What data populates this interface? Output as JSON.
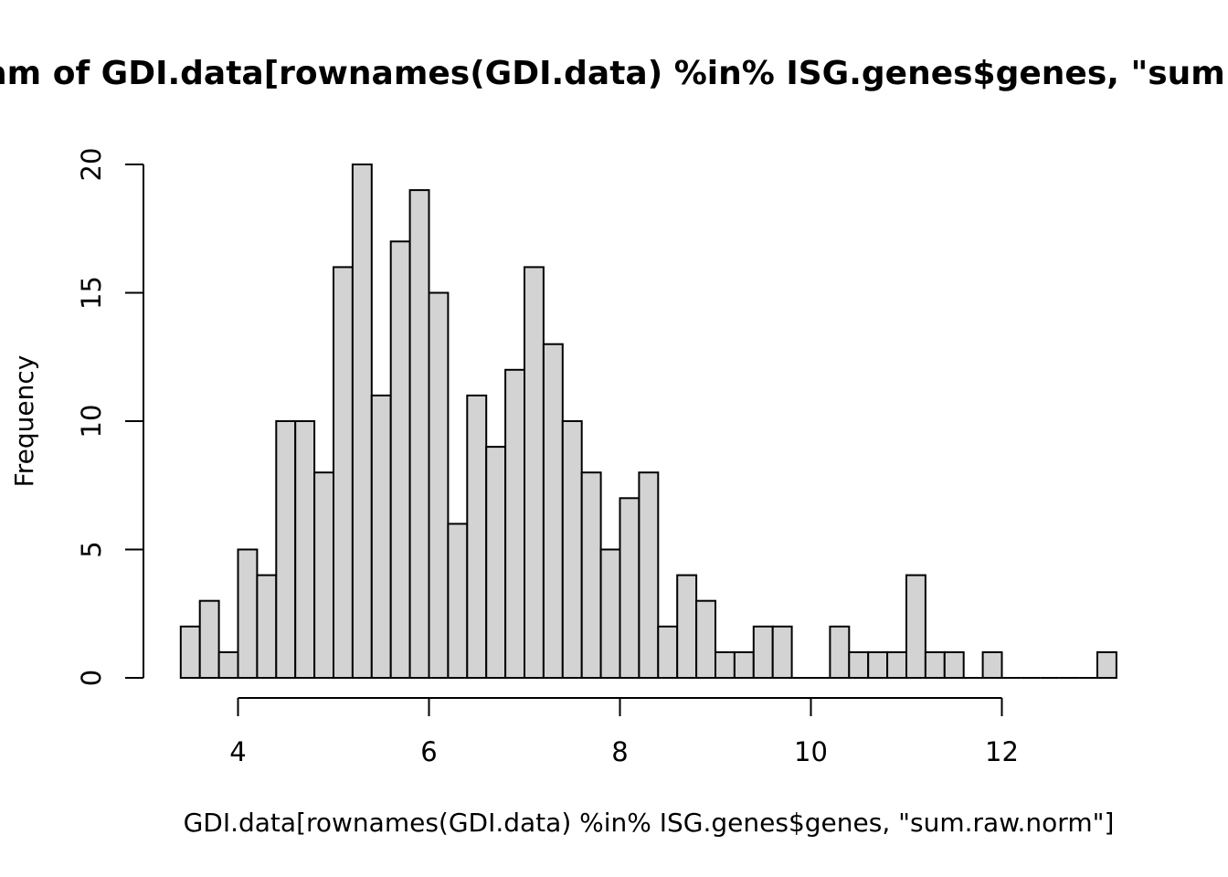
{
  "chart_data": {
    "type": "bar",
    "title": "Histogram of GDI.data[rownames(GDI.data) %in% ISG.genes$genes, \"sum.raw.norm\"]",
    "xlabel": "GDI.data[rownames(GDI.data) %in% ISG.genes$genes, \"sum.raw.norm\"]",
    "ylabel": "Frequency",
    "bin_width": 0.2,
    "bin_start": 3.4,
    "values": [
      2,
      3,
      1,
      5,
      4,
      10,
      10,
      8,
      16,
      20,
      11,
      17,
      19,
      15,
      6,
      11,
      9,
      12,
      16,
      13,
      10,
      8,
      5,
      7,
      8,
      2,
      4,
      3,
      1,
      1,
      2,
      2,
      0,
      0,
      2,
      1,
      1,
      1,
      4,
      1,
      1,
      0,
      1,
      0,
      0,
      0,
      0,
      0,
      1
    ],
    "xlim": [
      3.4,
      13.2
    ],
    "ylim": [
      0,
      20
    ],
    "x_ticks": [
      "4",
      "6",
      "8",
      "10",
      "12"
    ],
    "y_ticks": [
      "0",
      "5",
      "10",
      "15",
      "20"
    ],
    "grid": false,
    "colors": {
      "bar_fill": "#d3d3d3",
      "bar_stroke": "#000000"
    }
  }
}
